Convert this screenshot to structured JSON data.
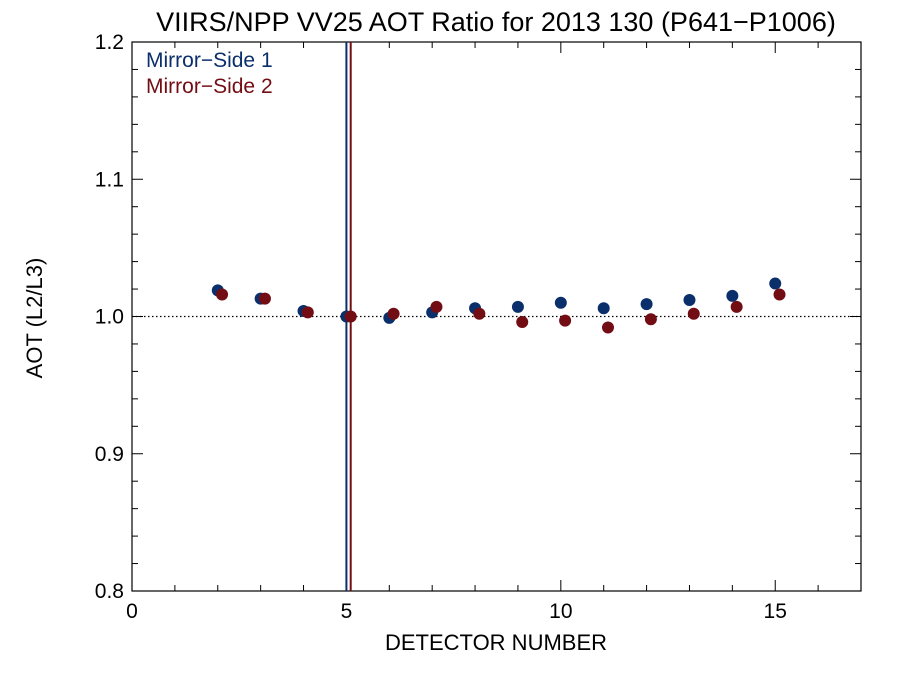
{
  "chart_data": {
    "type": "scatter",
    "title": "VIIRS/NPP VV25 AOT Ratio for 2013 130 (P641−P1006)",
    "xlabel": "DETECTOR NUMBER",
    "ylabel": "AOT (L2/L3)",
    "xlim": [
      0,
      17
    ],
    "ylim": [
      0.8,
      1.2
    ],
    "x_major_ticks": [
      0,
      5,
      10,
      15
    ],
    "x_tick_labels": [
      "0",
      "5",
      "10",
      "15"
    ],
    "x_minor_step": 1,
    "y_major_ticks": [
      0.8,
      0.9,
      1.0,
      1.1,
      1.2
    ],
    "y_tick_labels": [
      "0.8",
      "0.9",
      "1.0",
      "1.1",
      "1.2"
    ],
    "y_minor_step": 0.02,
    "grid": false,
    "legend_position": "top-left",
    "reference_line": {
      "y": 1.0,
      "style": "dotted"
    },
    "vertical_lines": [
      {
        "x": 5.0,
        "series": "Mirror−Side 1"
      },
      {
        "x": 5.1,
        "series": "Mirror−Side 2"
      }
    ],
    "series": [
      {
        "name": "Mirror−Side 1",
        "color": "#0b2f6b",
        "x": [
          2,
          3,
          4,
          5,
          6,
          7,
          8,
          9,
          10,
          11,
          12,
          13,
          14,
          15
        ],
        "y": [
          1.019,
          1.013,
          1.004,
          1.0,
          0.999,
          1.003,
          1.006,
          1.007,
          1.01,
          1.006,
          1.009,
          1.012,
          1.015,
          1.024
        ]
      },
      {
        "name": "Mirror−Side 2",
        "color": "#730d14",
        "x": [
          2.1,
          3.1,
          4.1,
          5.1,
          6.1,
          7.1,
          8.1,
          9.1,
          10.1,
          11.1,
          12.1,
          13.1,
          14.1,
          15.1
        ],
        "y": [
          1.016,
          1.013,
          1.003,
          1.0,
          1.002,
          1.007,
          1.002,
          0.996,
          0.997,
          0.992,
          0.998,
          1.002,
          1.007,
          1.016
        ]
      }
    ]
  }
}
